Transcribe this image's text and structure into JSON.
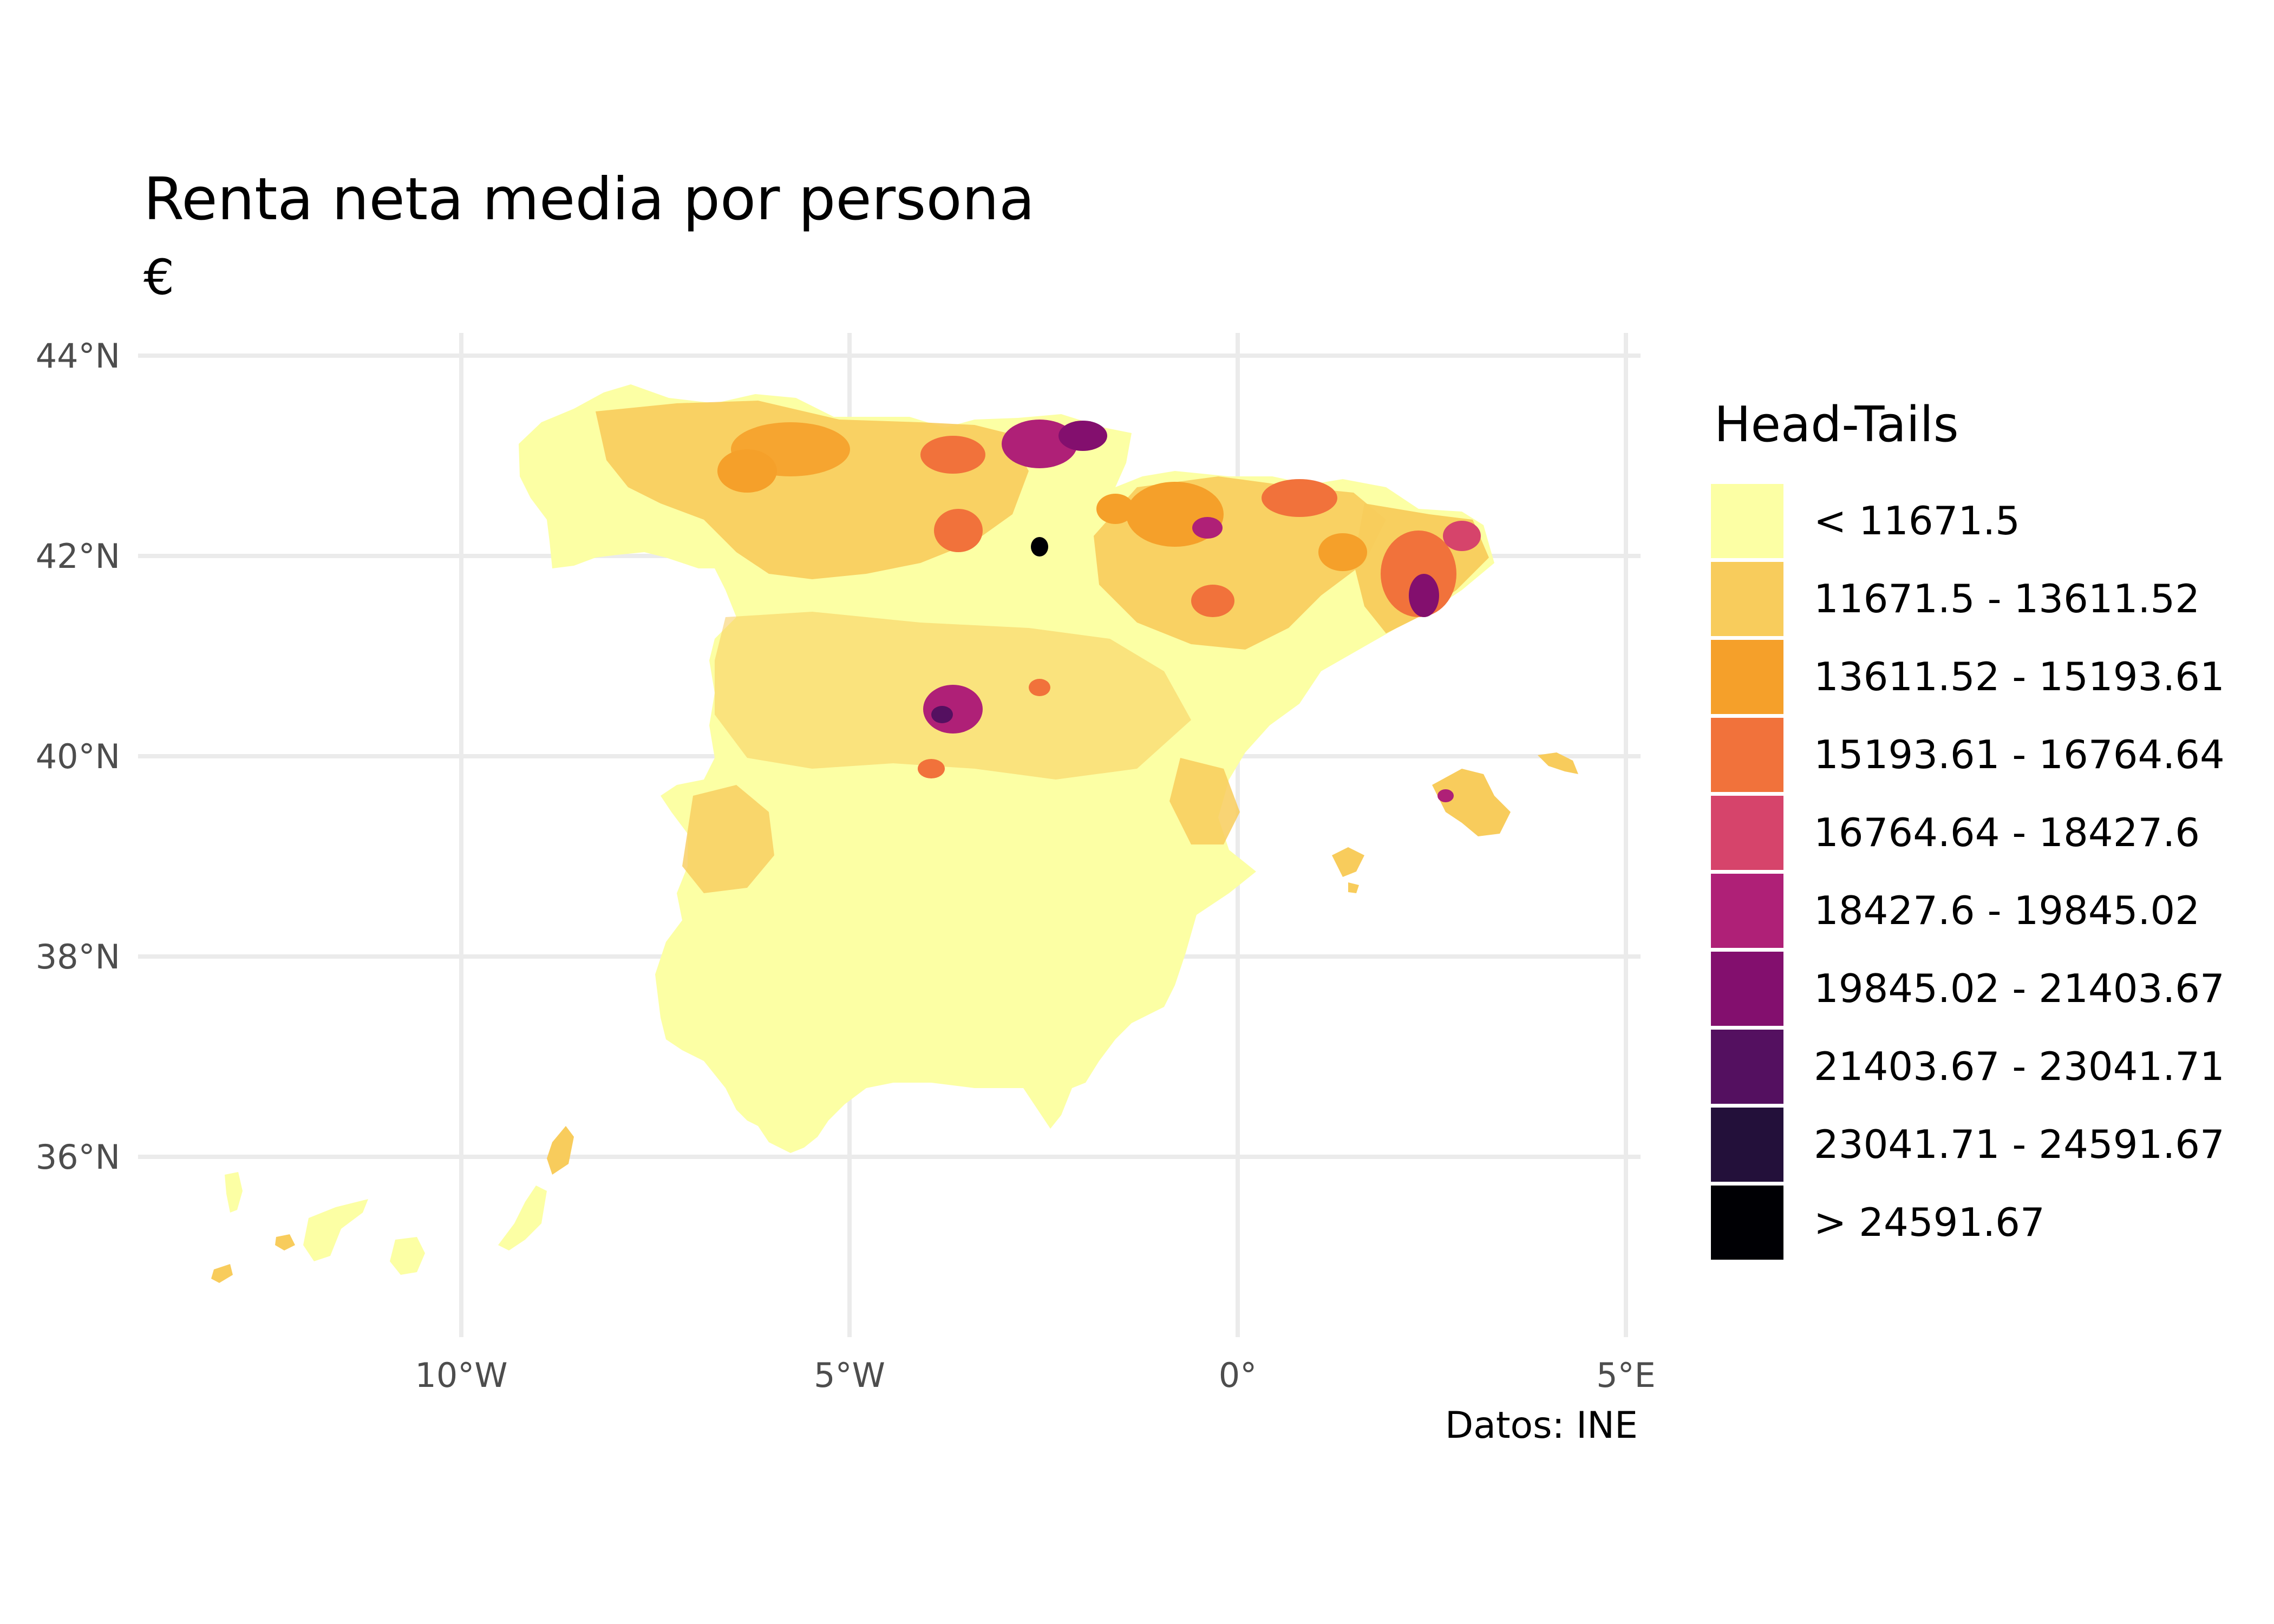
{
  "title": "Renta neta media por persona",
  "subtitle": "€",
  "caption": "Datos: INE",
  "axes": {
    "x_ticks": [
      "10°W",
      "5°W",
      "0°",
      "5°E"
    ],
    "y_ticks": [
      "44°N",
      "42°N",
      "40°N",
      "38°N",
      "36°N"
    ]
  },
  "chart_data": {
    "type": "choropleth map",
    "grid": true,
    "x_range_lon": [
      -14.3,
      5.2
    ],
    "y_range_lat": [
      34.3,
      44.2
    ],
    "legend_placement": "right",
    "legend": {
      "title": "Head-Tails",
      "classes": [
        {
          "label": "< 11671.5",
          "color": "#FCFFA4"
        },
        {
          "label": "11671.5 - 13611.52",
          "color": "#F8CC5C"
        },
        {
          "label": "13611.52 - 15193.61",
          "color": "#F5A02A"
        },
        {
          "label": "15193.61 - 16764.64",
          "color": "#F1723B"
        },
        {
          "label": "16764.64 - 18427.6",
          "color": "#D6446B"
        },
        {
          "label": "18427.6 - 19845.02",
          "color": "#AF2077"
        },
        {
          "label": "19845.02 - 21403.67",
          "color": "#830F6E"
        },
        {
          "label": "21403.67 - 23041.71",
          "color": "#541060"
        },
        {
          "label": "23041.71 - 24591.67",
          "color": "#23103A"
        },
        {
          "label": "> 24591.67",
          "color": "#000004"
        }
      ]
    }
  }
}
